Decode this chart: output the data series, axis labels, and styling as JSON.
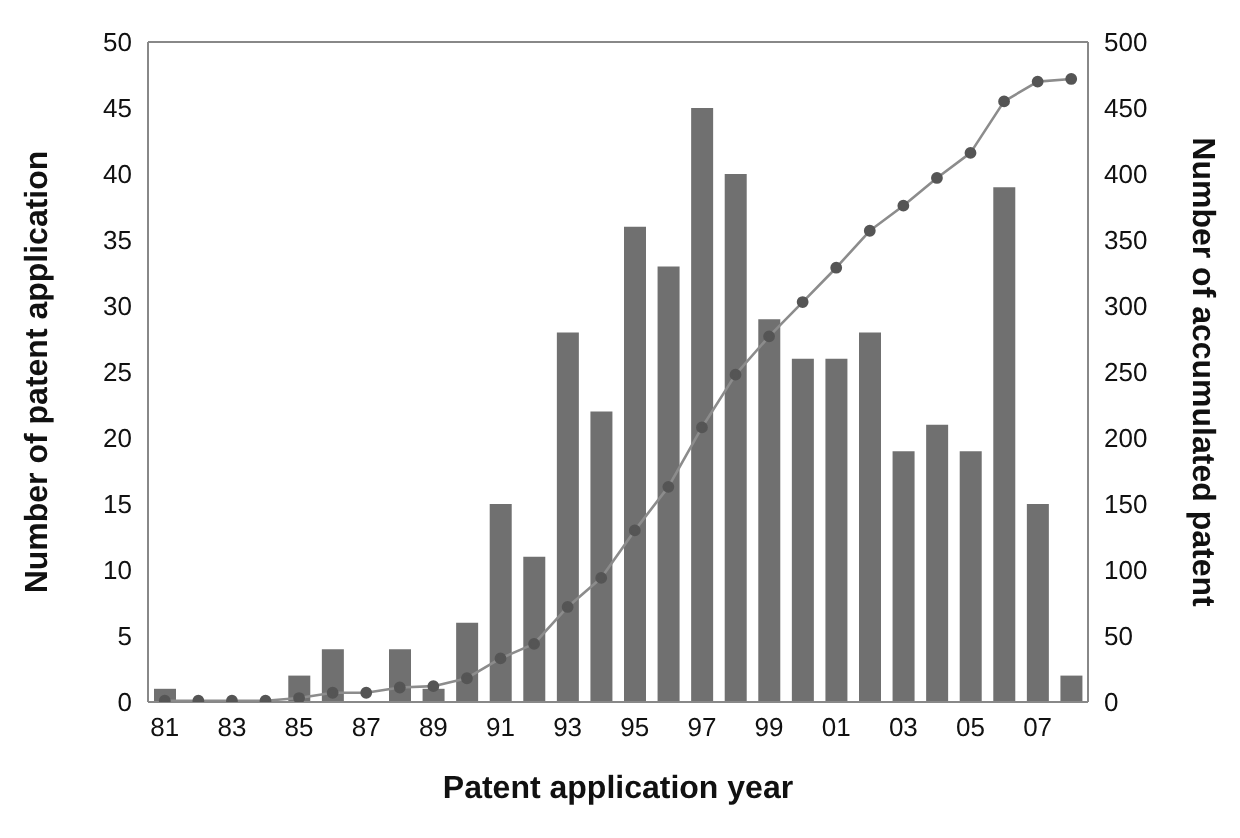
{
  "chart_data": {
    "type": "bar",
    "xlabel": "Patent application year",
    "ylabel": "Number of patent application",
    "y2label": "Number of accumulated patent",
    "categories": [
      "81",
      null,
      "83",
      null,
      "85",
      null,
      "87",
      null,
      "89",
      null,
      "91",
      null,
      "93",
      null,
      "95",
      null,
      "97",
      null,
      "99",
      null,
      "01",
      null,
      "03",
      null,
      "05",
      null,
      "07",
      null
    ],
    "series": [
      {
        "color": "#707070",
        "values": [
          1,
          0,
          0,
          0,
          2,
          4,
          0,
          4,
          1,
          6,
          15,
          11,
          28,
          22,
          36,
          33,
          45,
          40,
          29,
          26,
          26,
          28,
          19,
          21,
          19,
          39,
          15,
          2
        ]
      },
      {
        "type": "line",
        "axis": "y2",
        "color": "#8c8c8c",
        "values": [
          1,
          1,
          1,
          1,
          3,
          7,
          7,
          11,
          12,
          18,
          33,
          44,
          72,
          94,
          130,
          163,
          208,
          248,
          277,
          303,
          329,
          357,
          376,
          397,
          416,
          455,
          470,
          472
        ]
      }
    ],
    "ylim": [
      0,
      50
    ],
    "yticks": [
      0,
      5,
      10,
      15,
      20,
      25,
      30,
      35,
      40,
      45,
      50
    ],
    "y2lim": [
      0,
      500
    ],
    "y2ticks": [
      0,
      50,
      100,
      150,
      200,
      250,
      300,
      350,
      400,
      450,
      500
    ],
    "marker": "circle",
    "grid": false,
    "legend": false
  }
}
